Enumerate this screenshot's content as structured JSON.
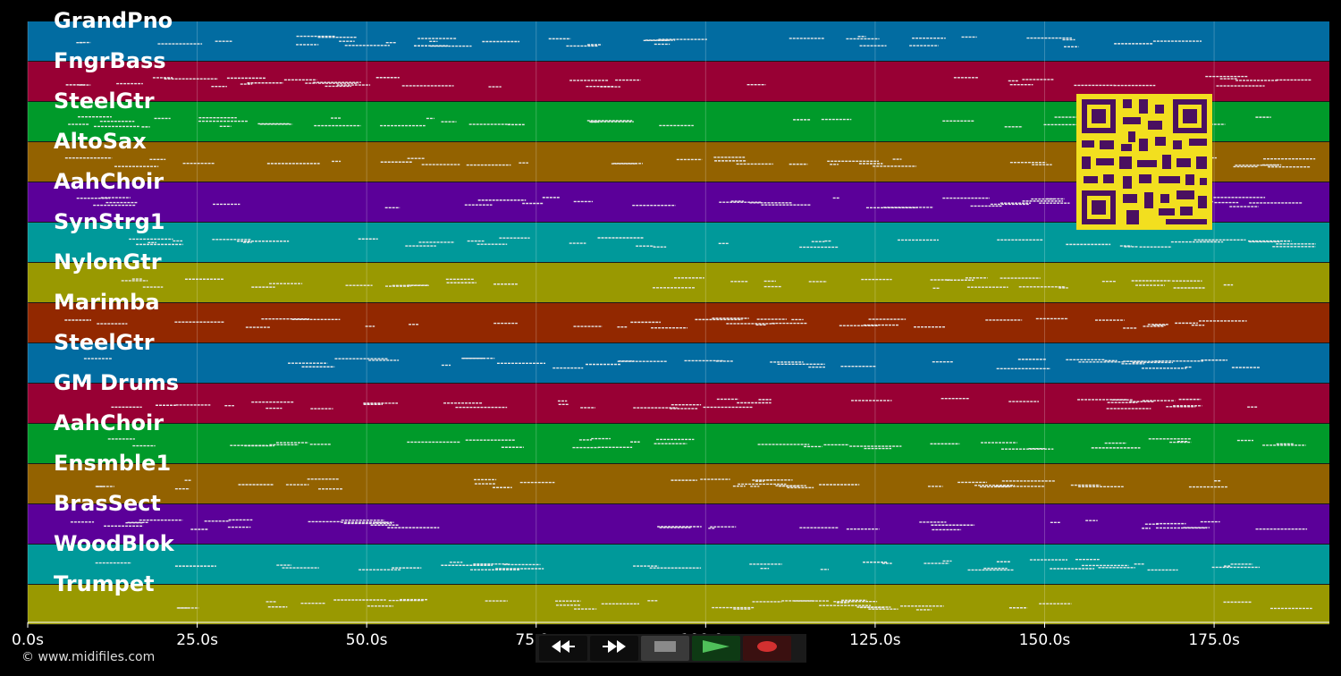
{
  "time_axis": {
    "max_seconds": 192,
    "ticks": [
      {
        "value": 0,
        "label": "0.0s"
      },
      {
        "value": 25,
        "label": "25.0s"
      },
      {
        "value": 50,
        "label": "50.0s"
      },
      {
        "value": 75,
        "label": "75.0s"
      },
      {
        "value": 100,
        "label": "100.0s"
      },
      {
        "value": 125,
        "label": "125.0s"
      },
      {
        "value": 150,
        "label": "150.0s"
      },
      {
        "value": 175,
        "label": "175.0s"
      }
    ]
  },
  "tracks": [
    {
      "name": "GrandPno",
      "color": "#026ca1"
    },
    {
      "name": "FngrBass",
      "color": "#980034"
    },
    {
      "name": "SteelGtr",
      "color": "#009a2a"
    },
    {
      "name": "AltoSax",
      "color": "#936200"
    },
    {
      "name": "AahChoir",
      "color": "#5b0099"
    },
    {
      "name": "SynStrg1",
      "color": "#00999a"
    },
    {
      "name": "NylonGtr",
      "color": "#999901"
    },
    {
      "name": "Marimba",
      "color": "#922800"
    },
    {
      "name": "SteelGtr",
      "color": "#026ca1"
    },
    {
      "name": "GM Drums",
      "color": "#980034"
    },
    {
      "name": "AahChoir",
      "color": "#009a2a"
    },
    {
      "name": "Ensmble1",
      "color": "#936200"
    },
    {
      "name": "BrasSect",
      "color": "#5b0099"
    },
    {
      "name": "WoodBlok",
      "color": "#00999a"
    },
    {
      "name": "Trumpet",
      "color": "#999901"
    }
  ],
  "controls": {
    "rewind": {
      "icon": "rewind-icon"
    },
    "fast_forward": {
      "icon": "fast-forward-icon"
    },
    "stop": {
      "icon": "stop-icon"
    },
    "play": {
      "icon": "play-icon"
    },
    "record": {
      "icon": "record-icon"
    }
  },
  "qr_code": {
    "icon": "qr-code-icon"
  },
  "copyright": "© www.midifiles.com"
}
